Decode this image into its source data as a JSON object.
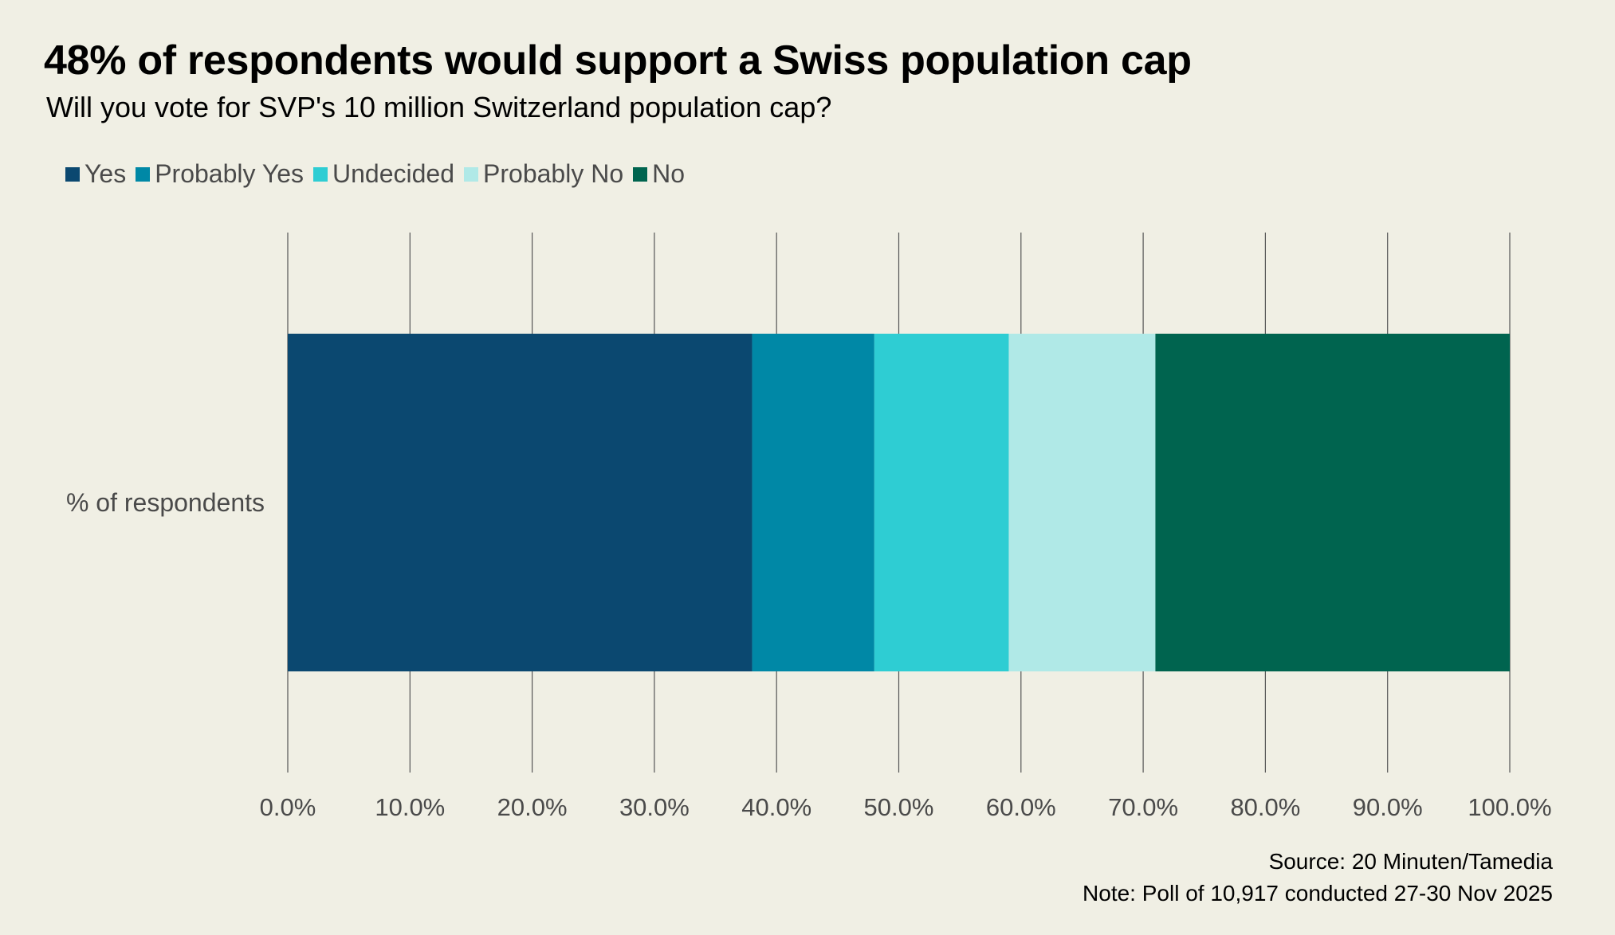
{
  "title": "48% of respondents would support a Swiss population cap",
  "subtitle": "Will you vote for SVP's 10 million Switzerland population cap?",
  "source": "Source: 20 Minuten/Tamedia",
  "note": "Note: Poll of 10,917 conducted 27-30 Nov 2025",
  "chart_data": {
    "type": "bar",
    "orientation": "horizontal",
    "stacked": true,
    "categories": [
      "% of respondents"
    ],
    "series": [
      {
        "name": "Yes",
        "values": [
          38
        ],
        "color": "#0b4870"
      },
      {
        "name": "Probably Yes",
        "values": [
          10
        ],
        "color": "#0088a6"
      },
      {
        "name": "Undecided",
        "values": [
          11
        ],
        "color": "#2ecdd3"
      },
      {
        "name": "Probably No",
        "values": [
          12
        ],
        "color": "#b0e9e7"
      },
      {
        "name": "No",
        "values": [
          29
        ],
        "color": "#00644f"
      }
    ],
    "xlim": [
      0,
      100
    ],
    "x_ticks": [
      "0.0%",
      "10.0%",
      "20.0%",
      "30.0%",
      "40.0%",
      "50.0%",
      "60.0%",
      "70.0%",
      "80.0%",
      "90.0%",
      "100.0%"
    ],
    "grid": "vertical",
    "legend_position": "top-left"
  }
}
